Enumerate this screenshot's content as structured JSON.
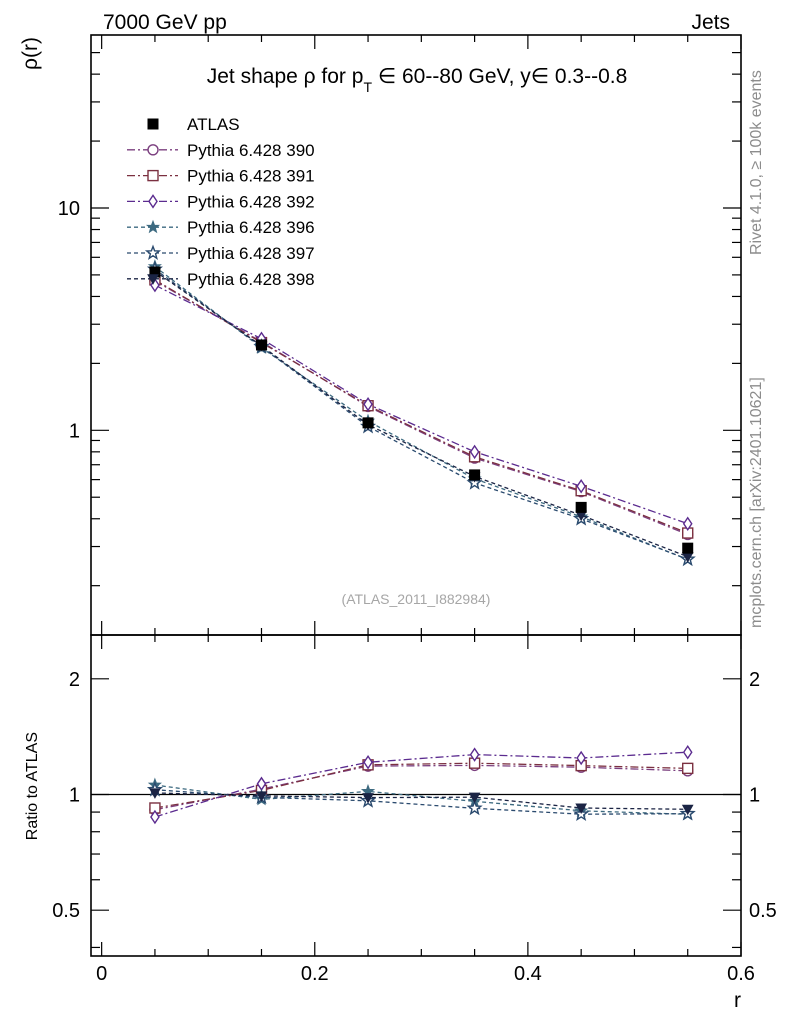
{
  "header": {
    "left": "7000 GeV pp",
    "right": "Jets"
  },
  "side_labels": {
    "rivet": "Rivet 4.1.0, ≥ 100k events",
    "mcplots": "mcplots.cern.ch [arXiv:2401.10621]"
  },
  "chart_data": {
    "type": "line",
    "title": {
      "pre": "Jet shape ρ for p",
      "sub": "T",
      "post": " ∈ 60--80 GeV, y∈ 0.3--0.8"
    },
    "watermark": "(ATLAS_2011_I882984)",
    "xlabel": "r",
    "ylabel": "ρ(r)",
    "ratio_ylabel": "Ratio to ATLAS",
    "xlim": [
      -0.01,
      0.6
    ],
    "ylim": [
      0.12,
      60
    ],
    "yscale": "log",
    "ratio_ylim": [
      0.38,
      2.6
    ],
    "ratio_yscale": "log",
    "x_ticks": [
      "0",
      "0.2",
      "0.4",
      "0.6"
    ],
    "x_tick_values": [
      0,
      0.2,
      0.4,
      0.6
    ],
    "y_ticks": [
      "1",
      "10"
    ],
    "y_tick_values": [
      1,
      10
    ],
    "ratio_ticks": [
      "0.5",
      "1",
      "2"
    ],
    "ratio_tick_values": [
      0.5,
      1,
      2
    ],
    "legend_position": "top-left",
    "x": [
      0.05,
      0.15,
      0.25,
      0.35,
      0.45,
      0.55
    ],
    "data": {
      "name": "ATLAS",
      "values": [
        5.15,
        2.42,
        1.08,
        0.63,
        0.45,
        0.295
      ],
      "color": "#000000"
    },
    "series": [
      {
        "name": "Pythia 6.428 390",
        "values": [
          4.7,
          2.5,
          1.28,
          0.75,
          0.53,
          0.34
        ],
        "color": "#7b3f7f",
        "marker": "circle",
        "dash": "8,3,2,3"
      },
      {
        "name": "Pythia 6.428 391",
        "values": [
          4.75,
          2.48,
          1.29,
          0.76,
          0.535,
          0.345
        ],
        "color": "#7b3040",
        "marker": "square",
        "dash": "8,3,2,3"
      },
      {
        "name": "Pythia 6.428 392",
        "values": [
          4.5,
          2.58,
          1.31,
          0.8,
          0.56,
          0.38
        ],
        "color": "#5b2b8f",
        "marker": "diamond",
        "dash": "8,3,2,3"
      },
      {
        "name": "Pythia 6.428 396",
        "values": [
          5.45,
          2.35,
          1.1,
          0.605,
          0.408,
          0.262
        ],
        "color": "#3d6a80",
        "marker": "star",
        "dash": "4,3"
      },
      {
        "name": "Pythia 6.428 397",
        "values": [
          5.3,
          2.38,
          1.04,
          0.58,
          0.4,
          0.263
        ],
        "color": "#2a4a6e",
        "marker": "star-open",
        "dash": "4,3"
      },
      {
        "name": "Pythia 6.428 398",
        "values": [
          5.2,
          2.4,
          1.06,
          0.62,
          0.415,
          0.27
        ],
        "color": "#1b2444",
        "marker": "tri-down",
        "dash": "4,3"
      }
    ]
  }
}
